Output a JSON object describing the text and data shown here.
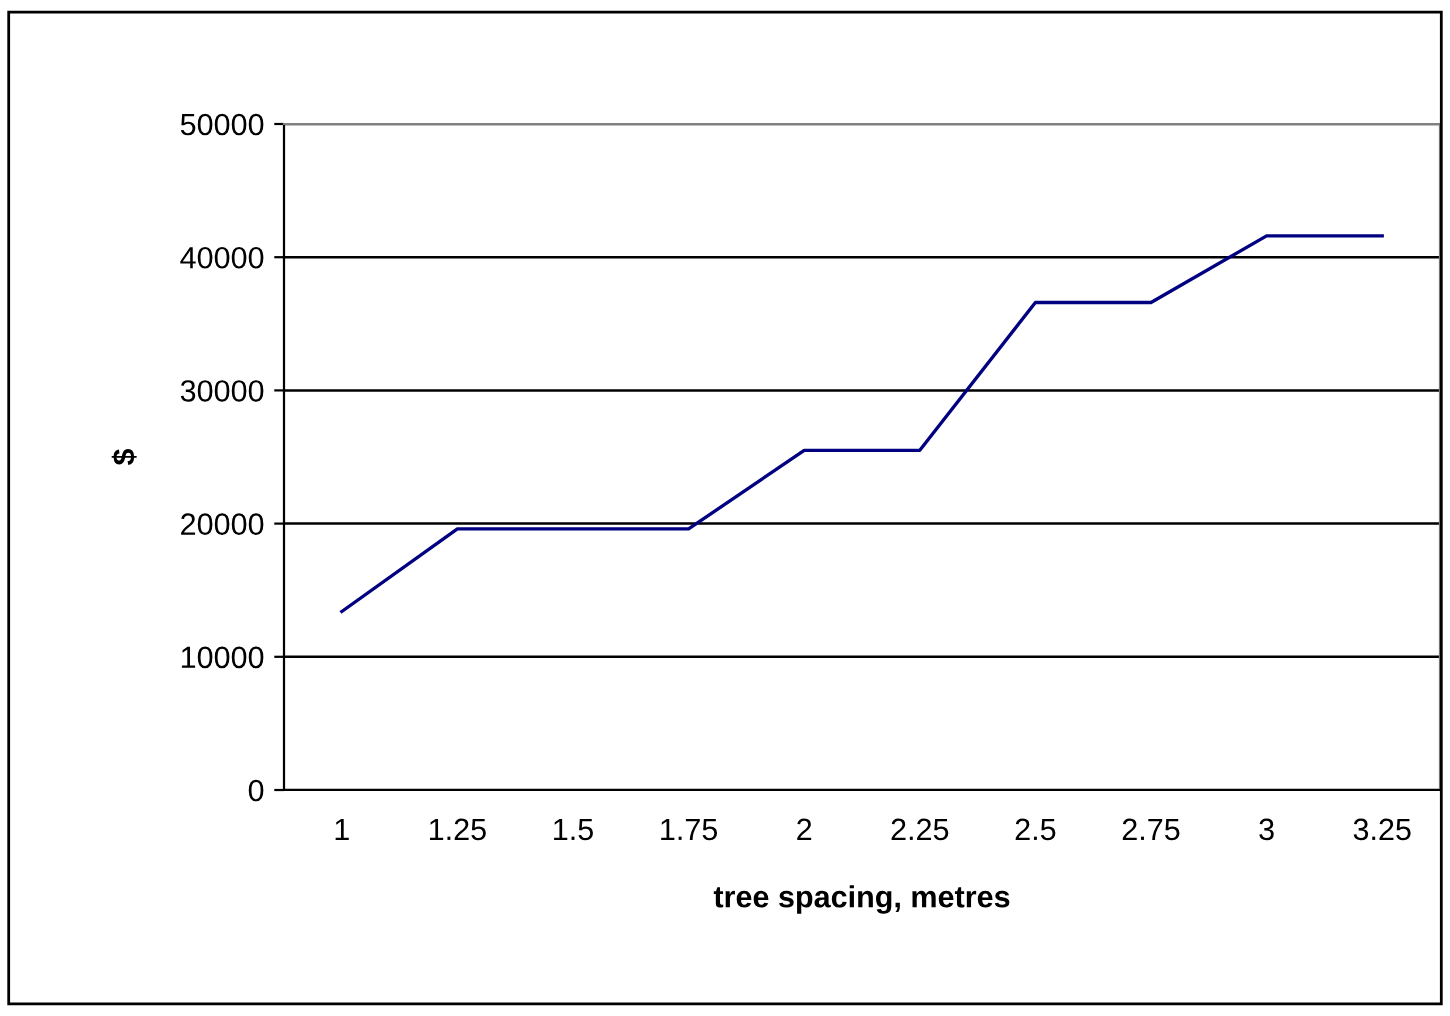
{
  "chart_data": {
    "type": "line",
    "xlabel": "tree spacing, metres",
    "ylabel": "$",
    "categories": [
      "1",
      "1.25",
      "1.5",
      "1.75",
      "2",
      "2.25",
      "2.5",
      "2.75",
      "3",
      "3.25"
    ],
    "series": [
      {
        "color": "#000080",
        "values": [
          13400,
          19600,
          19600,
          19600,
          25500,
          25500,
          36600,
          36600,
          41600,
          41600
        ]
      }
    ],
    "ylim": [
      0,
      50000
    ],
    "yticks": [
      0,
      10000,
      20000,
      30000,
      40000,
      50000
    ],
    "grid": "y",
    "legend": false,
    "marker": "none",
    "line_style": "solid"
  }
}
